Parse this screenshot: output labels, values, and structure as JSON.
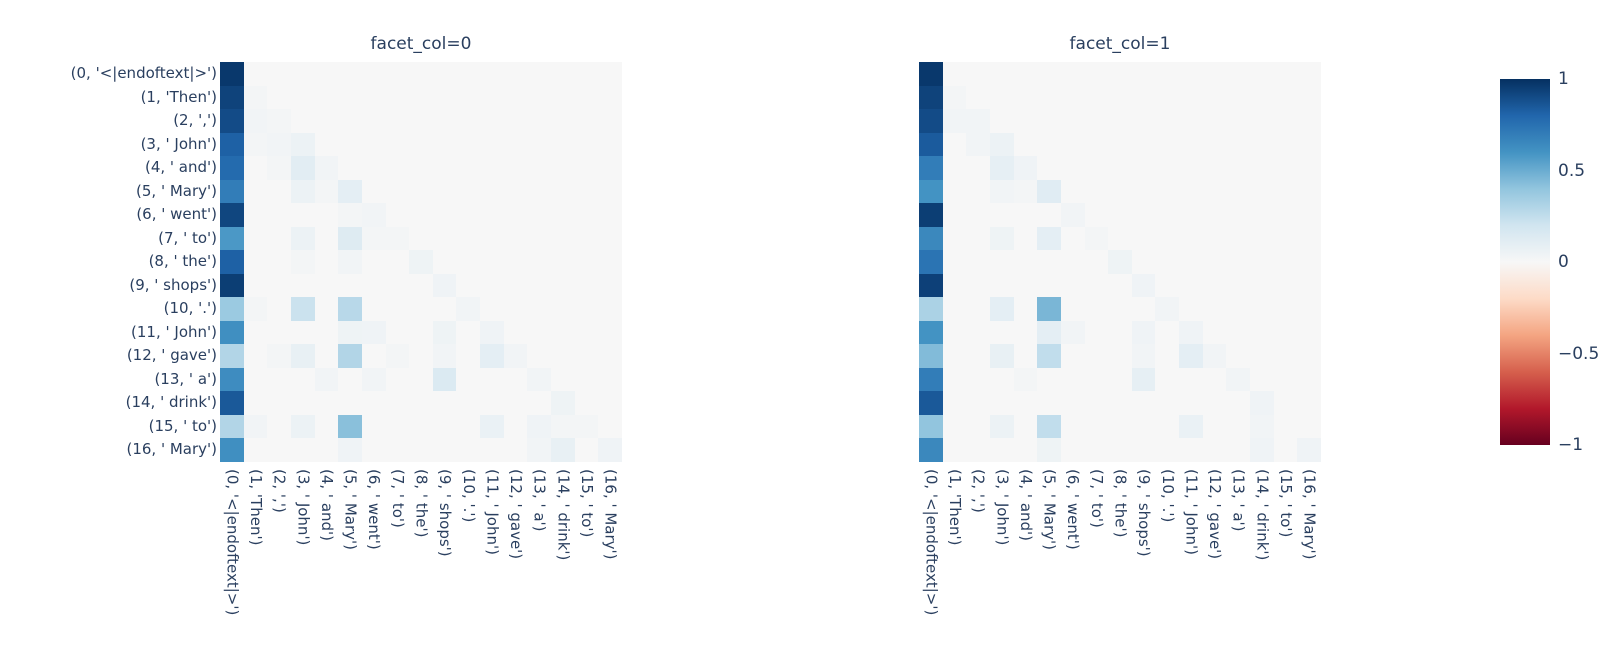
{
  "figure": {
    "background": "#ffffff",
    "font_color": "#2a3f5f"
  },
  "chart_data": {
    "type": "heatmap",
    "title": "",
    "x_labels": [
      "(0, '<|endoftext|>')",
      "(1, 'Then')",
      "(2, ',')",
      "(3, ' John')",
      "(4, ' and')",
      "(5, ' Mary')",
      "(6, ' went')",
      "(7, ' to')",
      "(8, ' the')",
      "(9, ' shops')",
      "(10, '.')",
      "(11, ' John')",
      "(12, ' gave')",
      "(13, ' a')",
      "(14, ' drink')",
      "(15, ' to')",
      "(16, ' Mary')"
    ],
    "y_labels": [
      "(0, '<|endoftext|>')",
      "(1, 'Then')",
      "(2, ',')",
      "(3, ' John')",
      "(4, ' and')",
      "(5, ' Mary')",
      "(6, ' went')",
      "(7, ' to')",
      "(8, ' the')",
      "(9, ' shops')",
      "(10, '.')",
      "(11, ' John')",
      "(12, ' gave')",
      "(13, ' a')",
      "(14, ' drink')",
      "(15, ' to')",
      "(16, ' Mary')"
    ],
    "zmin": -1,
    "zmax": 1,
    "colorscale_name": "RdBu",
    "colorscale_stops": [
      [
        -1,
        "#67001f"
      ],
      [
        -0.8,
        "#b2182b"
      ],
      [
        -0.6,
        "#d6604d"
      ],
      [
        -0.4,
        "#f4a582"
      ],
      [
        -0.2,
        "#fddbc7"
      ],
      [
        0,
        "#f7f7f7"
      ],
      [
        0.2,
        "#d1e5f0"
      ],
      [
        0.4,
        "#92c5de"
      ],
      [
        0.6,
        "#4393c3"
      ],
      [
        0.8,
        "#2166ac"
      ],
      [
        1,
        "#053061"
      ]
    ],
    "colorbar": {
      "side": "right",
      "ticks": [
        "1",
        "0.5",
        "0",
        "−0.5",
        "−1"
      ],
      "tick_values": [
        1,
        0.5,
        0,
        -0.5,
        -1
      ]
    },
    "facets": [
      {
        "title": "facet_col=0",
        "z": [
          [
            0.97,
            0,
            0,
            0,
            0,
            0,
            0,
            0,
            0,
            0,
            0,
            0,
            0,
            0,
            0,
            0,
            0
          ],
          [
            0.93,
            0.02,
            0,
            0,
            0,
            0,
            0,
            0,
            0,
            0,
            0,
            0,
            0,
            0,
            0,
            0,
            0
          ],
          [
            0.9,
            0.03,
            0.02,
            0,
            0,
            0,
            0,
            0,
            0,
            0,
            0,
            0,
            0,
            0,
            0,
            0,
            0
          ],
          [
            0.82,
            0.02,
            0.03,
            0.06,
            0,
            0,
            0,
            0,
            0,
            0,
            0,
            0,
            0,
            0,
            0,
            0,
            0
          ],
          [
            0.78,
            0,
            0.02,
            0.11,
            0.03,
            0,
            0,
            0,
            0,
            0,
            0,
            0,
            0,
            0,
            0,
            0,
            0
          ],
          [
            0.7,
            0,
            0,
            0.06,
            0.02,
            0.1,
            0,
            0,
            0,
            0,
            0,
            0,
            0,
            0,
            0,
            0,
            0
          ],
          [
            0.92,
            0,
            0,
            0,
            0,
            0.02,
            0.03,
            0,
            0,
            0,
            0,
            0,
            0,
            0,
            0,
            0,
            0
          ],
          [
            0.58,
            0,
            0,
            0.06,
            0,
            0.13,
            0.02,
            0.02,
            0,
            0,
            0,
            0,
            0,
            0,
            0,
            0,
            0
          ],
          [
            0.82,
            0,
            0,
            0.02,
            0,
            0.03,
            0,
            0,
            0.05,
            0,
            0,
            0,
            0,
            0,
            0,
            0,
            0
          ],
          [
            0.95,
            0,
            0,
            0,
            0,
            0,
            0,
            0,
            0,
            0.04,
            0,
            0,
            0,
            0,
            0,
            0,
            0
          ],
          [
            0.37,
            0.02,
            0,
            0.22,
            0,
            0.28,
            0,
            0,
            0,
            0,
            0.03,
            0,
            0,
            0,
            0,
            0,
            0
          ],
          [
            0.62,
            0,
            0,
            0,
            0,
            0.05,
            0.04,
            0,
            0,
            0.05,
            0,
            0.04,
            0,
            0,
            0,
            0,
            0
          ],
          [
            0.3,
            0,
            0.02,
            0.08,
            0,
            0.3,
            0,
            0.02,
            0,
            0.03,
            0,
            0.1,
            0.03,
            0,
            0,
            0,
            0
          ],
          [
            0.63,
            0,
            0,
            0,
            0.03,
            0,
            0.03,
            0,
            0,
            0.15,
            0,
            0,
            0,
            0.03,
            0,
            0,
            0
          ],
          [
            0.85,
            0,
            0,
            0,
            0,
            0,
            0,
            0,
            0,
            0,
            0,
            0,
            0,
            0,
            0.05,
            0,
            0
          ],
          [
            0.3,
            0.03,
            0,
            0.06,
            0,
            0.42,
            0,
            0,
            0,
            0,
            0,
            0.07,
            0,
            0.04,
            0.02,
            0.02,
            0
          ],
          [
            0.62,
            0,
            0,
            0,
            0,
            0.04,
            0,
            0,
            0,
            0,
            0,
            0,
            0,
            0.03,
            0.08,
            0,
            0.04
          ]
        ]
      },
      {
        "title": "facet_col=1",
        "z": [
          [
            0.97,
            0,
            0,
            0,
            0,
            0,
            0,
            0,
            0,
            0,
            0,
            0,
            0,
            0,
            0,
            0,
            0
          ],
          [
            0.93,
            0.02,
            0,
            0,
            0,
            0,
            0,
            0,
            0,
            0,
            0,
            0,
            0,
            0,
            0,
            0,
            0
          ],
          [
            0.9,
            0.03,
            0.03,
            0,
            0,
            0,
            0,
            0,
            0,
            0,
            0,
            0,
            0,
            0,
            0,
            0,
            0
          ],
          [
            0.84,
            0,
            0.03,
            0.06,
            0,
            0,
            0,
            0,
            0,
            0,
            0,
            0,
            0,
            0,
            0,
            0,
            0
          ],
          [
            0.7,
            0,
            0,
            0.09,
            0.04,
            0,
            0,
            0,
            0,
            0,
            0,
            0,
            0,
            0,
            0,
            0,
            0
          ],
          [
            0.6,
            0,
            0,
            0.03,
            0.02,
            0.12,
            0,
            0,
            0,
            0,
            0,
            0,
            0,
            0,
            0,
            0,
            0
          ],
          [
            0.95,
            0,
            0,
            0,
            0,
            0,
            0.03,
            0,
            0,
            0,
            0,
            0,
            0,
            0,
            0,
            0,
            0
          ],
          [
            0.65,
            0,
            0,
            0.05,
            0,
            0.1,
            0,
            0.02,
            0,
            0,
            0,
            0,
            0,
            0,
            0,
            0,
            0
          ],
          [
            0.74,
            0,
            0,
            0,
            0,
            0,
            0,
            0,
            0.05,
            0,
            0,
            0,
            0,
            0,
            0,
            0,
            0
          ],
          [
            0.94,
            0,
            0,
            0,
            0,
            0,
            0,
            0,
            0,
            0.04,
            0,
            0,
            0,
            0,
            0,
            0,
            0
          ],
          [
            0.32,
            0,
            0,
            0.1,
            0,
            0.46,
            0,
            0,
            0,
            0,
            0.03,
            0,
            0,
            0,
            0,
            0,
            0
          ],
          [
            0.6,
            0,
            0,
            0,
            0,
            0.1,
            0.03,
            0,
            0,
            0.04,
            0,
            0.04,
            0,
            0,
            0,
            0,
            0
          ],
          [
            0.44,
            0,
            0,
            0.08,
            0,
            0.25,
            0,
            0,
            0,
            0.03,
            0,
            0.1,
            0.03,
            0,
            0,
            0,
            0
          ],
          [
            0.7,
            0,
            0,
            0,
            0.02,
            0,
            0,
            0,
            0,
            0.09,
            0,
            0,
            0,
            0.03,
            0,
            0,
            0
          ],
          [
            0.85,
            0,
            0,
            0,
            0,
            0,
            0,
            0,
            0,
            0,
            0,
            0,
            0,
            0,
            0.04,
            0,
            0
          ],
          [
            0.4,
            0,
            0,
            0.06,
            0,
            0.25,
            0,
            0,
            0,
            0,
            0,
            0.07,
            0,
            0,
            0.03,
            0,
            0
          ],
          [
            0.65,
            0,
            0,
            0,
            0,
            0.05,
            0,
            0,
            0,
            0,
            0,
            0,
            0,
            0,
            0.04,
            0,
            0.04
          ]
        ]
      }
    ]
  }
}
